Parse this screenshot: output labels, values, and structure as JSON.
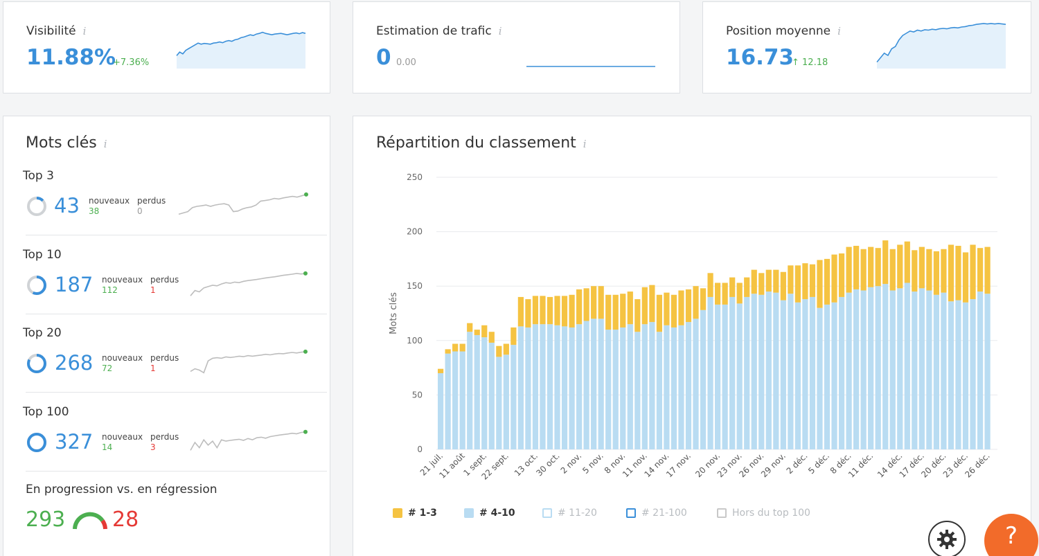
{
  "metrics": {
    "visibility": {
      "label": "Visibilité",
      "value": "11.88%",
      "delta": "+7.36%",
      "trend": [
        0.3,
        0.4,
        0.35,
        0.45,
        0.5,
        0.55,
        0.6,
        0.65,
        0.62,
        0.64,
        0.63,
        0.62,
        0.65,
        0.66,
        0.68,
        0.66,
        0.7,
        0.72,
        0.7,
        0.74,
        0.76,
        0.8,
        0.82,
        0.85,
        0.88,
        0.86,
        0.9,
        0.92,
        0.95,
        0.92,
        0.9,
        0.88,
        0.9,
        0.91,
        0.92,
        0.9,
        0.88,
        0.9,
        0.92,
        0.93,
        0.91,
        0.94,
        0.92
      ]
    },
    "traffic": {
      "label": "Estimation de trafic",
      "value": "0",
      "delta": "0.00",
      "trend": [
        0,
        0,
        0,
        0,
        0,
        0,
        0,
        0,
        0,
        0
      ]
    },
    "position": {
      "label": "Position moyenne",
      "value": "16.73",
      "delta": "↑ 12.18",
      "trend": [
        0.1,
        0.2,
        0.3,
        0.25,
        0.4,
        0.45,
        0.6,
        0.7,
        0.75,
        0.8,
        0.78,
        0.82,
        0.8,
        0.83,
        0.82,
        0.84,
        0.83,
        0.85,
        0.86,
        0.85,
        0.87,
        0.88,
        0.87,
        0.89,
        0.9,
        0.92,
        0.93,
        0.95,
        0.96,
        0.97,
        0.96,
        0.97,
        0.96,
        0.97,
        0.96,
        0.95
      ]
    }
  },
  "keywords": {
    "title": "Mots clés",
    "rows": [
      {
        "label": "Top 3",
        "value": "43",
        "new_label": "nouveaux",
        "new": "38",
        "lost_label": "perdus",
        "lost": "0",
        "lost_color": "grey",
        "ring": 0.13,
        "trend": [
          0.2,
          0.25,
          0.3,
          0.45,
          0.5,
          0.52,
          0.55,
          0.5,
          0.55,
          0.58,
          0.6,
          0.55,
          0.3,
          0.32,
          0.4,
          0.45,
          0.48,
          0.55,
          0.7,
          0.72,
          0.75,
          0.8,
          0.78,
          0.82,
          0.85,
          0.88,
          0.85,
          0.9,
          0.95
        ]
      },
      {
        "label": "Top 10",
        "value": "187",
        "new_label": "nouveaux",
        "new": "112",
        "lost_label": "perdus",
        "lost": "1",
        "lost_color": "red",
        "ring": 0.57,
        "trend": [
          0.1,
          0.3,
          0.25,
          0.4,
          0.45,
          0.5,
          0.48,
          0.55,
          0.6,
          0.58,
          0.62,
          0.6,
          0.65,
          0.68,
          0.7,
          0.72,
          0.75,
          0.78,
          0.8,
          0.82,
          0.85,
          0.88,
          0.9,
          0.92,
          0.95,
          0.93,
          0.95
        ]
      },
      {
        "label": "Top 20",
        "value": "268",
        "new_label": "nouveaux",
        "new": "72",
        "lost_label": "perdus",
        "lost": "1",
        "lost_color": "red",
        "ring": 0.82,
        "trend": [
          0.2,
          0.3,
          0.25,
          0.15,
          0.6,
          0.7,
          0.72,
          0.7,
          0.75,
          0.73,
          0.75,
          0.78,
          0.76,
          0.8,
          0.78,
          0.8,
          0.82,
          0.85,
          0.83,
          0.86,
          0.88,
          0.87,
          0.9,
          0.92,
          0.9,
          0.93,
          0.95
        ]
      },
      {
        "label": "Top 100",
        "value": "327",
        "new_label": "nouveaux",
        "new": "14",
        "lost_label": "perdus",
        "lost": "3",
        "lost_color": "red",
        "ring": 1.0,
        "trend": [
          0.2,
          0.5,
          0.3,
          0.6,
          0.4,
          0.55,
          0.3,
          0.6,
          0.55,
          0.58,
          0.6,
          0.62,
          0.58,
          0.65,
          0.6,
          0.68,
          0.7,
          0.66,
          0.72,
          0.75,
          0.78,
          0.8,
          0.82,
          0.85,
          0.83,
          0.88,
          0.9
        ]
      }
    ],
    "progression": {
      "label": "En progression vs. en régression",
      "up": "293",
      "down": "28"
    }
  },
  "ranking": {
    "title": "Répartition du classement",
    "legend": [
      {
        "label": "# 1-3",
        "color": "#f5c342",
        "active": true
      },
      {
        "label": "# 4-10",
        "color": "#b9dcf2",
        "active": true
      },
      {
        "label": "# 11-20",
        "color": "#b9dcf2",
        "active": false
      },
      {
        "label": "# 21-100",
        "color": "#3a8fd9",
        "active": false
      },
      {
        "label": "Hors du top 100",
        "color": "#c8c8c8",
        "active": false
      }
    ]
  },
  "chart_data": {
    "type": "bar",
    "ylabel": "Mots clés",
    "ylim": [
      0,
      250
    ],
    "yticks": [
      0,
      50,
      100,
      150,
      200,
      250
    ],
    "xtick_labels": [
      "21 juil.",
      "11 août",
      "1 sept.",
      "22 sept.",
      "13 oct.",
      "30 oct.",
      "2 nov.",
      "5 nov.",
      "8 nov.",
      "11 nov.",
      "14 nov.",
      "17 nov.",
      "20 nov.",
      "23 nov.",
      "26 nov.",
      "29 nov.",
      "2 déc.",
      "5 déc.",
      "8 déc.",
      "11 déc.",
      "14 déc.",
      "17 déc.",
      "20 déc.",
      "23 déc.",
      "26 déc."
    ],
    "grid": true,
    "series": [
      {
        "name": "# 4-10",
        "color": "#b9dcf2",
        "values": [
          70,
          88,
          90,
          90,
          108,
          105,
          103,
          98,
          85,
          87,
          96,
          113,
          112,
          115,
          115,
          115,
          114,
          113,
          112,
          115,
          118,
          120,
          120,
          110,
          110,
          112,
          115,
          108,
          115,
          117,
          108,
          114,
          112,
          114,
          117,
          120,
          128,
          140,
          133,
          133,
          140,
          134,
          140,
          143,
          142,
          145,
          144,
          137,
          143,
          135,
          138,
          140,
          130,
          133,
          135,
          140,
          144,
          147,
          146,
          149,
          150,
          152,
          146,
          148,
          153,
          145,
          148,
          146,
          142,
          144,
          136,
          137,
          135,
          138,
          145,
          143
        ],
        "stacked_on": null
      },
      {
        "name": "# 1-3",
        "color": "#f5c342",
        "values": [
          4,
          4,
          7,
          7,
          8,
          5,
          11,
          10,
          10,
          10,
          16,
          27,
          26,
          26,
          26,
          25,
          27,
          28,
          30,
          32,
          30,
          30,
          30,
          32,
          32,
          31,
          30,
          30,
          34,
          34,
          34,
          30,
          30,
          32,
          30,
          30,
          20,
          22,
          20,
          20,
          18,
          19,
          18,
          22,
          20,
          20,
          21,
          26,
          26,
          34,
          33,
          30,
          44,
          42,
          44,
          40,
          42,
          40,
          38,
          37,
          35,
          40,
          38,
          40,
          38,
          38,
          38,
          38,
          40,
          40,
          52,
          50,
          46,
          50,
          40,
          43
        ]
      }
    ]
  },
  "fabs": {
    "help": "?",
    "settings_icon": "gear-icon"
  }
}
